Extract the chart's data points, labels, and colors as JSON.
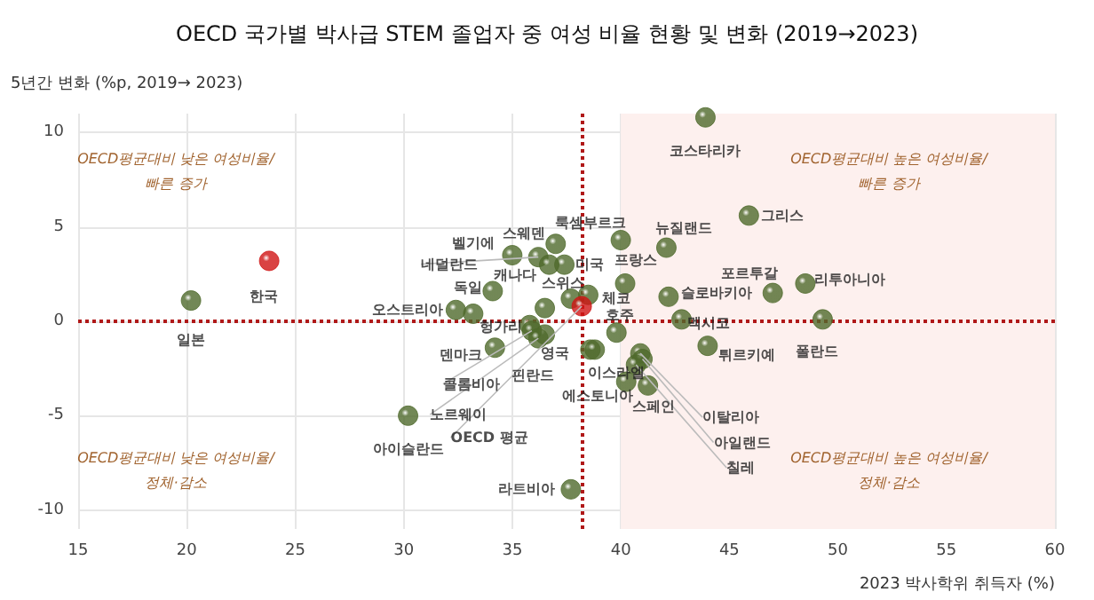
{
  "chart_data": {
    "type": "scatter",
    "title": "OECD 국가별 박사급 STEM 졸업자 중 여성 비율 현황 및 변화 (2019→2023)",
    "xlabel": "2023 박사학위 취득자 (%)",
    "ylabel": "5년간 변화 (%p, 2019→ 2023)",
    "xlim": [
      15,
      60
    ],
    "xticks": [
      15,
      20,
      25,
      30,
      35,
      40,
      45,
      50,
      55,
      60
    ],
    "ylim": [
      -11,
      11
    ],
    "yticks": [
      -10,
      -5,
      0,
      5,
      10
    ],
    "grid": true,
    "marker": "circle",
    "series": [
      {
        "color": "#4f6a2c",
        "x": [
          20.2,
          43.9,
          45.9,
          42.1,
          40.0,
          40.2,
          37.4,
          37.0,
          35.0,
          36.2,
          36.7,
          34.1,
          36.5,
          38.5,
          37.7,
          47.0,
          48.5,
          42.2,
          49.3,
          42.8,
          44.0,
          39.8,
          32.4,
          33.2,
          35.8,
          36.5,
          34.2,
          38.6,
          38.8,
          40.9,
          40.25,
          41.25,
          30.2,
          37.7,
          35.9,
          36.2,
          41.0,
          40.7
        ],
        "values": [
          1.1,
          10.8,
          5.6,
          3.9,
          4.3,
          2.0,
          3.0,
          4.1,
          3.5,
          3.4,
          3.0,
          1.6,
          0.7,
          1.4,
          1.2,
          1.5,
          2.0,
          1.3,
          0.1,
          0.1,
          -1.3,
          -0.6,
          0.6,
          0.4,
          -0.2,
          -0.7,
          -1.4,
          -1.5,
          -1.5,
          -1.7,
          -3.2,
          -3.4,
          -5.0,
          -8.9,
          -0.5,
          -0.9,
          -2.0,
          -2.3
        ]
      },
      {
        "color": "#d01414",
        "x": [
          23.8,
          38.2
        ],
        "values": [
          3.2,
          0.8
        ]
      }
    ],
    "ref_lines": [
      {
        "axis": "x",
        "value": 38.2,
        "color": "#b01818",
        "line_style": "dotted"
      },
      {
        "axis": "y",
        "value": 0,
        "color": "#b01818",
        "line_style": "dotted"
      }
    ],
    "bands": [
      {
        "axis": "x",
        "from": 40,
        "to": 60,
        "color": "#fdf0ee"
      }
    ],
    "annotations": [
      "OECD평균대비 낮은 여성비율/\n빠른 증가",
      "OECD평균대비 높은 여성비율/\n빠른 증가",
      "OECD평균대비 낮은 여성비율/\n정체·감소",
      "OECD평균대비 높은 여성비율/\n정체·감소",
      {
        "text": "일본",
        "x": 20.2,
        "y": 1.1
      },
      {
        "text": "한국",
        "x": 23.8,
        "y": 3.2
      },
      {
        "text": "코스타리카",
        "x": 43.9,
        "y": 10.8
      },
      {
        "text": "그리스",
        "x": 45.9,
        "y": 5.6
      },
      {
        "text": "뉴질랜드",
        "x": 42.1,
        "y": 3.9
      },
      {
        "text": "룩셈부르크",
        "x": 40.0,
        "y": 4.3
      },
      {
        "text": "프랑스",
        "x": 40.2,
        "y": 2.0
      },
      {
        "text": "미국",
        "x": 37.4,
        "y": 3.0
      },
      {
        "text": "스웨덴",
        "x": 37.0,
        "y": 4.1
      },
      {
        "text": "벨기에",
        "x": 35.0,
        "y": 3.5
      },
      {
        "text": "네덜란드",
        "x": 36.2,
        "y": 3.4
      },
      {
        "text": "캐나다",
        "x": 36.7,
        "y": 3.0
      },
      {
        "text": "독일",
        "x": 34.1,
        "y": 1.6
      },
      {
        "text": "스위스",
        "x": 36.5,
        "y": 0.7
      },
      {
        "text": "체코",
        "x": 38.5,
        "y": 1.4
      },
      {
        "text": "포르투갈",
        "x": 47.0,
        "y": 1.5
      },
      {
        "text": "리투아니아",
        "x": 48.5,
        "y": 2.0
      },
      {
        "text": "슬로바키아",
        "x": 42.2,
        "y": 1.3
      },
      {
        "text": "폴란드",
        "x": 49.3,
        "y": 0.1
      },
      {
        "text": "멕시코",
        "x": 42.8,
        "y": 0.1
      },
      {
        "text": "튀르키예",
        "x": 44.0,
        "y": -1.3
      },
      {
        "text": "호주",
        "x": 39.8,
        "y": -0.6
      },
      {
        "text": "오스트리아",
        "x": 32.4,
        "y": 0.6
      },
      {
        "text": "헝가리",
        "x": 35.8,
        "y": -0.2
      },
      {
        "text": "핀란드",
        "x": 36.5,
        "y": -0.7
      },
      {
        "text": "덴마크",
        "x": 34.2,
        "y": -1.4
      },
      {
        "text": "영국",
        "x": 38.6,
        "y": -1.5
      },
      {
        "text": "이스라엘",
        "x": 38.8,
        "y": -1.5
      },
      {
        "text": "이탈리아",
        "x": 40.9,
        "y": -1.7
      },
      {
        "text": "에스토니아",
        "x": 40.25,
        "y": -3.2
      },
      {
        "text": "스페인",
        "x": 41.25,
        "y": -3.4
      },
      {
        "text": "아이슬란드",
        "x": 30.2,
        "y": -5.0
      },
      {
        "text": "라트비아",
        "x": 37.7,
        "y": -8.9
      },
      {
        "text": "OECD 평균",
        "x": 38.2,
        "y": 0.8
      },
      {
        "text": "콜롬비아",
        "x": 35.9,
        "y": -0.5
      },
      {
        "text": "노르웨이",
        "x": 36.2,
        "y": -0.9
      },
      {
        "text": "아일랜드",
        "x": 41.0,
        "y": -2.0
      },
      {
        "text": "칠레",
        "x": 40.7,
        "y": -2.3
      }
    ]
  }
}
